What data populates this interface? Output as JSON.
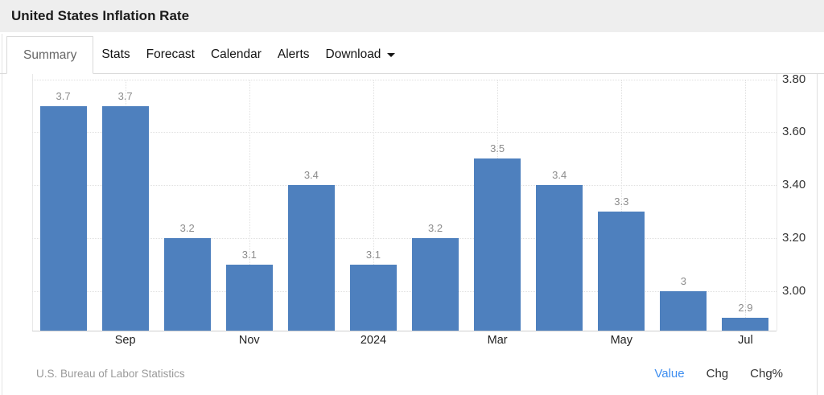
{
  "header": {
    "title": "United States Inflation Rate"
  },
  "tabs": {
    "items": [
      {
        "label": "Summary",
        "active": true
      },
      {
        "label": "Stats"
      },
      {
        "label": "Forecast"
      },
      {
        "label": "Calendar"
      },
      {
        "label": "Alerts"
      },
      {
        "label": "Download",
        "has_caret": true
      }
    ]
  },
  "chart_data": {
    "type": "bar",
    "title": "United States Inflation Rate",
    "series": [
      {
        "name": "Inflation Rate",
        "values": [
          3.7,
          3.7,
          3.2,
          3.1,
          3.4,
          3.1,
          3.2,
          3.5,
          3.4,
          3.3,
          3.0,
          2.9
        ],
        "value_labels": [
          "3.7",
          "3.7",
          "3.2",
          "3.1",
          "3.4",
          "3.1",
          "3.2",
          "3.5",
          "3.4",
          "3.3",
          "3",
          "2.9"
        ]
      }
    ],
    "x_tick_labels": [
      {
        "label": "Sep",
        "slot": 1
      },
      {
        "label": "Nov",
        "slot": 3
      },
      {
        "label": "2024",
        "slot": 5
      },
      {
        "label": "Mar",
        "slot": 7
      },
      {
        "label": "May",
        "slot": 9
      },
      {
        "label": "Jul",
        "slot": 11
      }
    ],
    "y_ticks": [
      {
        "label": "3.80",
        "value": 3.8
      },
      {
        "label": "3.60",
        "value": 3.6
      },
      {
        "label": "3.40",
        "value": 3.4
      },
      {
        "label": "3.20",
        "value": 3.2
      },
      {
        "label": "3.00",
        "value": 3.0
      }
    ],
    "ylim": [
      2.851,
      3.82
    ],
    "y_axis_position": "right",
    "grid": "dotted",
    "bar_color": "#4e80be",
    "value_label_color": "#8c8c8c"
  },
  "footer": {
    "source": "U.S. Bureau of Labor Statistics",
    "links": [
      {
        "label": "Value",
        "active": true
      },
      {
        "label": "Chg"
      },
      {
        "label": "Chg%"
      }
    ],
    "active_link_color": "#3e8ef0"
  }
}
